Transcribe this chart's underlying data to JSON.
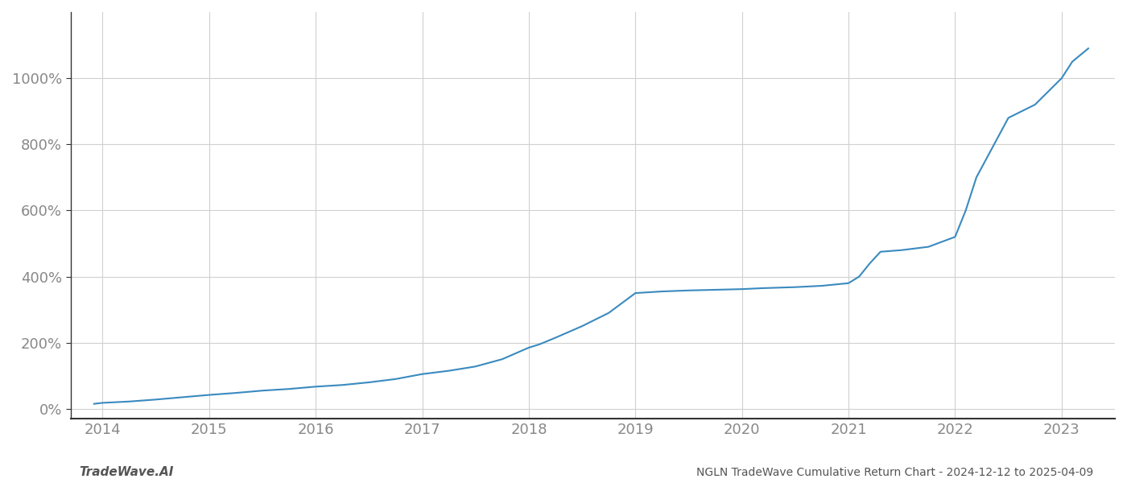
{
  "x_years": [
    2013.92,
    2014.0,
    2014.25,
    2014.5,
    2014.75,
    2015.0,
    2015.25,
    2015.5,
    2015.75,
    2016.0,
    2016.25,
    2016.5,
    2016.75,
    2017.0,
    2017.25,
    2017.5,
    2017.75,
    2018.0,
    2018.1,
    2018.25,
    2018.5,
    2018.75,
    2019.0,
    2019.25,
    2019.5,
    2019.75,
    2020.0,
    2020.2,
    2020.5,
    2020.75,
    2021.0,
    2021.1,
    2021.2,
    2021.3,
    2021.5,
    2021.75,
    2022.0,
    2022.1,
    2022.2,
    2022.5,
    2022.75,
    2023.0,
    2023.1,
    2023.25
  ],
  "y_values": [
    15,
    18,
    22,
    28,
    35,
    42,
    48,
    55,
    60,
    67,
    72,
    80,
    90,
    105,
    115,
    128,
    150,
    185,
    195,
    215,
    250,
    290,
    350,
    355,
    358,
    360,
    362,
    365,
    368,
    372,
    380,
    400,
    440,
    475,
    480,
    490,
    520,
    600,
    700,
    880,
    920,
    1000,
    1050,
    1090
  ],
  "line_color": "#3a8abf",
  "line_width": 1.5,
  "background_color": "#ffffff",
  "grid_color": "#d0d0d0",
  "title": "NGLN TradeWave Cumulative Return Chart - 2024-12-12 to 2025-04-09",
  "watermark": "TradeWave.AI",
  "ytick_labels": [
    "0%",
    "200%",
    "400%",
    "600%",
    "800%",
    "1000%"
  ],
  "ytick_values": [
    0,
    200,
    400,
    600,
    800,
    1000
  ],
  "xlim": [
    2013.7,
    2023.5
  ],
  "ylim": [
    -30,
    1200
  ],
  "xtick_years": [
    2014,
    2015,
    2016,
    2017,
    2018,
    2019,
    2020,
    2021,
    2022,
    2023
  ],
  "title_fontsize": 10,
  "watermark_fontsize": 11,
  "tick_fontsize": 13,
  "spine_color": "#333333"
}
